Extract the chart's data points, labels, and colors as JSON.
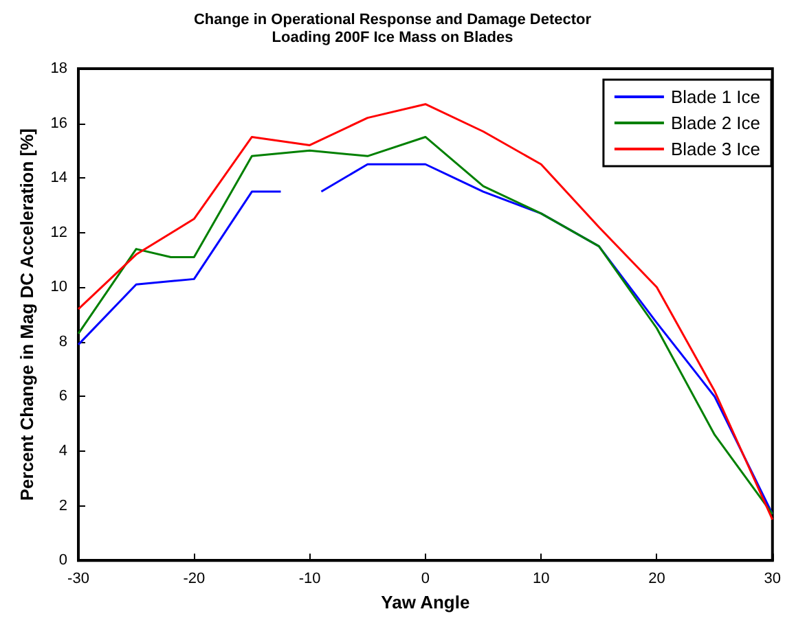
{
  "chart_data": {
    "type": "line",
    "title": "Change in Operational Response and Damage Detector",
    "subtitle": "Loading 200F Ice Mass on Blades",
    "xlabel": "Yaw Angle",
    "ylabel": "Percent Change in Mag DC Acceleration [%]",
    "xlim": [
      -30,
      30
    ],
    "xticks": [
      -30,
      -20,
      -10,
      0,
      10,
      20,
      30
    ],
    "ylim": [
      0,
      18
    ],
    "yticks": [
      0,
      2,
      4,
      6,
      8,
      10,
      12,
      14,
      16,
      18
    ],
    "grid": false,
    "legend": "top right",
    "marker": "none",
    "line_style": "solid",
    "series": [
      {
        "name": "Blade 1 Ice",
        "color": "#0000ff",
        "x": [
          -30,
          -25,
          -20,
          -15,
          -12.5,
          -11,
          -9,
          -5,
          0,
          5,
          10,
          15,
          20,
          25,
          30
        ],
        "values": [
          7.9,
          10.1,
          10.3,
          13.5,
          13.5,
          null,
          13.5,
          14.5,
          14.5,
          13.5,
          12.7,
          11.5,
          8.7,
          6.0,
          1.7
        ]
      },
      {
        "name": "Blade 2 Ice",
        "color": "#008000",
        "x": [
          -30,
          -25,
          -22,
          -20,
          -15,
          -10,
          -5,
          0,
          5,
          10,
          15,
          20,
          25,
          30
        ],
        "values": [
          8.3,
          11.4,
          11.1,
          11.1,
          14.8,
          15.0,
          14.8,
          15.5,
          13.7,
          12.7,
          11.5,
          8.5,
          4.6,
          1.7
        ]
      },
      {
        "name": "Blade 3 Ice",
        "color": "#ff0000",
        "x": [
          -30,
          -25,
          -20,
          -15,
          -10,
          -5,
          0,
          5,
          10,
          15,
          20,
          25,
          30
        ],
        "values": [
          9.2,
          11.2,
          12.5,
          15.5,
          15.2,
          16.2,
          16.7,
          15.7,
          14.5,
          12.2,
          10.0,
          6.2,
          1.5
        ]
      }
    ]
  }
}
